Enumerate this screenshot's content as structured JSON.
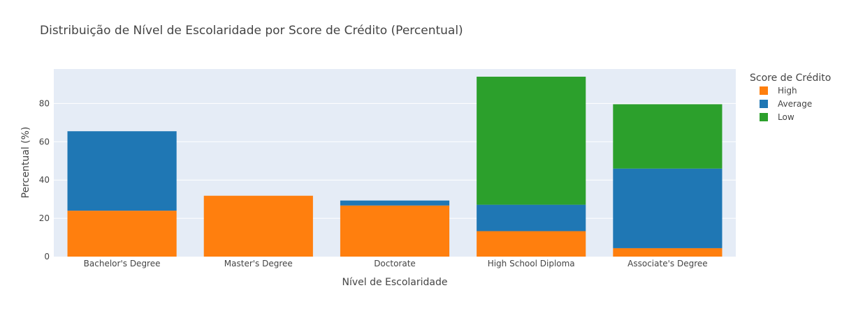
{
  "chart_data": {
    "type": "bar",
    "barmode": "stack",
    "title": "Distribuição de Nível de Escolaridade por Score de Crédito (Percentual)",
    "xlabel": "Nível de Escolaridade",
    "ylabel": "Percentual (%)",
    "ylim": [
      0,
      98
    ],
    "yticks": [
      0,
      20,
      40,
      60,
      80
    ],
    "grid": true,
    "categories": [
      "Bachelor's Degree",
      "Master's Degree",
      "Doctorate",
      "High School Diploma",
      "Associate's Degree"
    ],
    "legend": {
      "title": "Score de Crédito",
      "position": "right"
    },
    "series": [
      {
        "name": "High",
        "color": "#ff7f0e",
        "values": [
          24.0,
          31.8,
          26.7,
          13.3,
          4.4
        ]
      },
      {
        "name": "Average",
        "color": "#1f77b4",
        "values": [
          41.5,
          0,
          2.6,
          13.8,
          41.6
        ]
      },
      {
        "name": "Low",
        "color": "#2ca02c",
        "values": [
          0,
          0,
          0,
          66.9,
          33.6
        ]
      }
    ]
  }
}
